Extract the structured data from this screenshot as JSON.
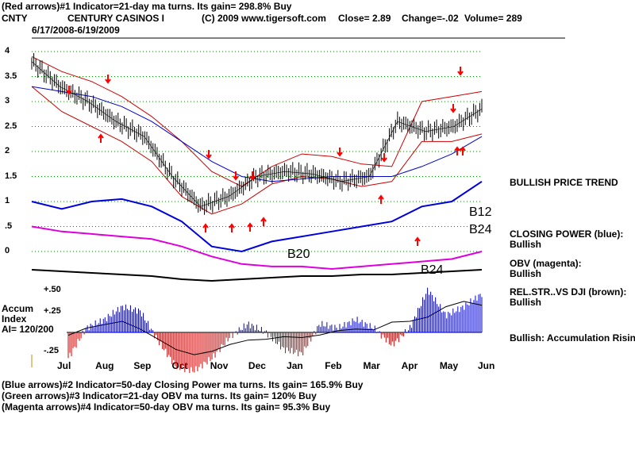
{
  "header": {
    "line1": "(Red arrows)#1 Indicator=21-day ma turns.  Its gain= 298.8% Buy",
    "ticker": "CNTY",
    "company": "CENTURY CASINOS I",
    "copyright": "(C) 2009 www.tigersoft.com",
    "close": "Close=  2.89",
    "change": "Change=-.02",
    "volume": "Volume= 289",
    "daterange": "6/17/2008-6/19/2009"
  },
  "footer": {
    "line1": "(Blue arrows)#2 Indicator=50-day Closing Power ma turns.  Its gain= 165.9% Buy",
    "line2": "(Green arrows)#3 Indicator=21-day OBV ma turns.  Its gain= 120% Buy",
    "line3": "(Magenta arrows)#4 Indicator=50-day OBV ma turns.  Its gain= 95.3% Buy"
  },
  "right_panel": {
    "trend": "BULLISH PRICE TREND",
    "cp_label": "CLOSING POWER (blue):",
    "cp_value": "Bullish",
    "obv_label": "OBV (magenta):",
    "obv_value": "Bullish",
    "rs_label": "REL.STR..VS DJI (brown):",
    "rs_value": "Bullish",
    "accum": "Bullish: Accumulation Rising"
  },
  "accum_panel": {
    "title1": "Accum",
    "title2": "Index",
    "ai": "AI= 120/200",
    "tick_plus50": "+.50",
    "tick_plus25": "+.25",
    "tick_minus25": "-.25"
  },
  "signals": {
    "b12": "B12",
    "b24a": "B24",
    "b20": "B20",
    "b24b": "B24"
  },
  "colors": {
    "price": "#000000",
    "ma_red": "#cc0000",
    "ma_blue": "#0000cc",
    "closing_power": "#0000dd",
    "obv": "#dd00dd",
    "rel_str": "#000000",
    "grid": "#008800",
    "accum_pos": "#0000cc",
    "accum_neg": "#cc0000",
    "arrow": "#ff0000"
  },
  "chart_data": {
    "type": "line",
    "x": [
      "Jul",
      "Aug",
      "Sep",
      "Oct",
      "Nov",
      "Dec",
      "Jan",
      "Feb",
      "Mar",
      "Apr",
      "May",
      "Jun"
    ],
    "y_ticks": [
      "4",
      "3.5",
      "3",
      "2.5",
      "2",
      "1.5",
      "1",
      ".5",
      "0"
    ],
    "ylim": [
      0,
      4.2
    ],
    "price_close": [
      3.8,
      3.3,
      3.0,
      2.6,
      2.3,
      1.5,
      0.9,
      1.1,
      1.5,
      1.6,
      1.55,
      1.4,
      1.5,
      2.6,
      2.4,
      2.5,
      2.85
    ],
    "ma_upper": [
      3.9,
      3.6,
      3.4,
      3.1,
      2.7,
      2.2,
      1.6,
      1.3,
      1.7,
      1.95,
      1.9,
      1.75,
      1.7,
      3.0,
      3.1,
      3.2
    ],
    "ma_lower": [
      3.3,
      2.8,
      2.5,
      2.2,
      1.8,
      1.1,
      0.75,
      0.95,
      1.35,
      1.5,
      1.45,
      1.3,
      1.4,
      2.2,
      2.2,
      2.35
    ],
    "ma_blue": [
      3.3,
      3.2,
      3.1,
      2.9,
      2.6,
      2.2,
      1.8,
      1.5,
      1.4,
      1.45,
      1.5,
      1.5,
      1.5,
      1.7,
      1.95,
      2.3
    ],
    "closing_power": [
      1.0,
      0.85,
      1.0,
      1.05,
      0.9,
      0.6,
      0.1,
      0.0,
      0.2,
      0.3,
      0.4,
      0.5,
      0.6,
      0.9,
      1.0,
      1.4
    ],
    "obv": [
      0.5,
      0.4,
      0.35,
      0.3,
      0.25,
      0.1,
      -0.1,
      -0.25,
      -0.3,
      -0.3,
      -0.35,
      -0.3,
      -0.25,
      -0.2,
      -0.15,
      0.0
    ],
    "rel_str": [
      -0.4,
      -0.45,
      -0.5,
      -0.55,
      -0.6,
      -0.7,
      -0.75,
      -0.7,
      -0.65,
      -0.6,
      -0.6,
      -0.55,
      -0.55,
      -0.5,
      -0.45,
      -0.4
    ],
    "accum_index": [
      -0.3,
      0.05,
      0.15,
      0.3,
      0.25,
      -0.1,
      -0.4,
      -0.45,
      -0.3,
      -0.05,
      0.1,
      0.0,
      -0.2,
      -0.25,
      0.1,
      0.05,
      0.15,
      0.05,
      -0.15,
      0.05,
      0.5,
      0.2,
      0.3,
      0.45
    ],
    "accum_range": [
      -0.5,
      0.6
    ]
  }
}
